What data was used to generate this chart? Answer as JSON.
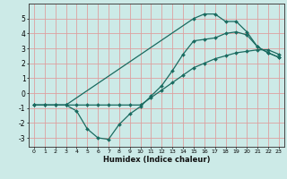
{
  "xlabel": "Humidex (Indice chaleur)",
  "background_color": "#cceae7",
  "grid_color": "#dda0a0",
  "line_color": "#1a6b60",
  "xlim": [
    -0.5,
    23.5
  ],
  "ylim": [
    -3.6,
    6.0
  ],
  "xticks": [
    0,
    1,
    2,
    3,
    4,
    5,
    6,
    7,
    8,
    9,
    10,
    11,
    12,
    13,
    14,
    15,
    16,
    17,
    18,
    19,
    20,
    21,
    22,
    23
  ],
  "yticks": [
    -3,
    -2,
    -1,
    0,
    1,
    2,
    3,
    4,
    5
  ],
  "line1_x": [
    0,
    1,
    2,
    3,
    4,
    5,
    6,
    7,
    8,
    9,
    10,
    11,
    12,
    13,
    14,
    15,
    16,
    17,
    18,
    19,
    20,
    21,
    22,
    23
  ],
  "line1_y": [
    -0.8,
    -0.8,
    -0.8,
    -0.8,
    -1.2,
    -2.4,
    -3.0,
    -3.1,
    -2.1,
    -1.4,
    -0.9,
    -0.2,
    0.5,
    1.5,
    2.6,
    3.5,
    3.6,
    3.7,
    4.0,
    4.1,
    3.9,
    3.1,
    2.7,
    2.4
  ],
  "line2_x": [
    0,
    1,
    2,
    3,
    4,
    5,
    6,
    7,
    8,
    9,
    10,
    11,
    12,
    13,
    14,
    15,
    16,
    17,
    18,
    19,
    20,
    21,
    22,
    23
  ],
  "line2_y": [
    -0.8,
    -0.8,
    -0.8,
    -0.8,
    -0.8,
    -0.8,
    -0.8,
    -0.8,
    -0.8,
    -0.8,
    -0.8,
    -0.3,
    0.2,
    0.7,
    1.2,
    1.7,
    2.0,
    2.3,
    2.5,
    2.7,
    2.8,
    2.9,
    2.9,
    2.6
  ],
  "line3_x": [
    0,
    3,
    15,
    16,
    17,
    18,
    19,
    20,
    21,
    22,
    23
  ],
  "line3_y": [
    -0.8,
    -0.8,
    5.0,
    5.3,
    5.3,
    4.8,
    4.8,
    4.1,
    3.1,
    2.7,
    2.4
  ]
}
